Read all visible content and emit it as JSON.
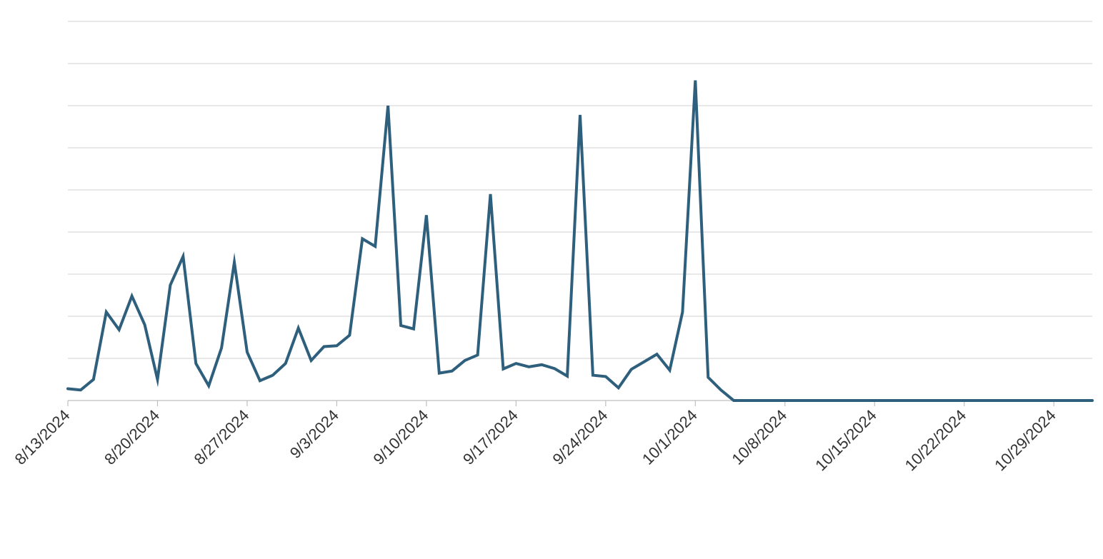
{
  "chart_data": {
    "type": "line",
    "title": "",
    "xlabel": "",
    "ylabel": "",
    "x_tick_labels": [
      "8/13/2024",
      "8/20/2024",
      "8/27/2024",
      "9/3/2024",
      "9/10/2024",
      "9/17/2024",
      "9/24/2024",
      "10/1/2024",
      "10/8/2024",
      "10/15/2024",
      "10/22/2024",
      "10/29/2024"
    ],
    "x_range": [
      "2024-08-13",
      "2024-11-01"
    ],
    "y_tick_labels_visible": false,
    "ylim": [
      0,
      9
    ],
    "grid": "horizontal",
    "colors": {
      "line": "#2e5f7c",
      "grid": "#d9d9d9",
      "axis": "#bfbfbf",
      "tick_label": "#333333"
    },
    "series": [
      {
        "x": [
          "2024-08-13",
          "2024-08-14",
          "2024-08-15",
          "2024-08-16",
          "2024-08-17",
          "2024-08-18",
          "2024-08-19",
          "2024-08-20",
          "2024-08-21",
          "2024-08-22",
          "2024-08-23",
          "2024-08-24",
          "2024-08-25",
          "2024-08-26",
          "2024-08-27",
          "2024-08-28",
          "2024-08-29",
          "2024-08-30",
          "2024-08-31",
          "2024-09-01",
          "2024-09-02",
          "2024-09-03",
          "2024-09-04",
          "2024-09-05",
          "2024-09-06",
          "2024-09-07",
          "2024-09-08",
          "2024-09-09",
          "2024-09-10",
          "2024-09-11",
          "2024-09-12",
          "2024-09-13",
          "2024-09-14",
          "2024-09-15",
          "2024-09-16",
          "2024-09-17",
          "2024-09-18",
          "2024-09-19",
          "2024-09-20",
          "2024-09-21",
          "2024-09-22",
          "2024-09-23",
          "2024-09-24",
          "2024-09-25",
          "2024-09-26",
          "2024-09-27",
          "2024-09-28",
          "2024-09-29",
          "2024-09-30",
          "2024-10-01",
          "2024-10-02",
          "2024-10-03",
          "2024-10-04",
          "2024-11-01"
        ],
        "values": [
          0.28,
          0.25,
          0.5,
          2.1,
          1.68,
          2.48,
          1.8,
          0.5,
          2.74,
          3.42,
          0.88,
          0.35,
          1.25,
          3.28,
          1.15,
          0.47,
          0.6,
          0.88,
          1.72,
          0.95,
          1.28,
          1.3,
          1.55,
          3.84,
          3.66,
          7.0,
          1.78,
          1.7,
          4.4,
          0.65,
          0.7,
          0.95,
          1.08,
          4.9,
          0.75,
          0.88,
          0.8,
          0.85,
          0.76,
          0.58,
          6.78,
          0.6,
          0.57,
          0.3,
          0.74,
          0.92,
          1.1,
          0.72,
          2.1,
          7.6,
          0.55,
          0.25,
          0.0,
          0.0
        ]
      }
    ]
  }
}
